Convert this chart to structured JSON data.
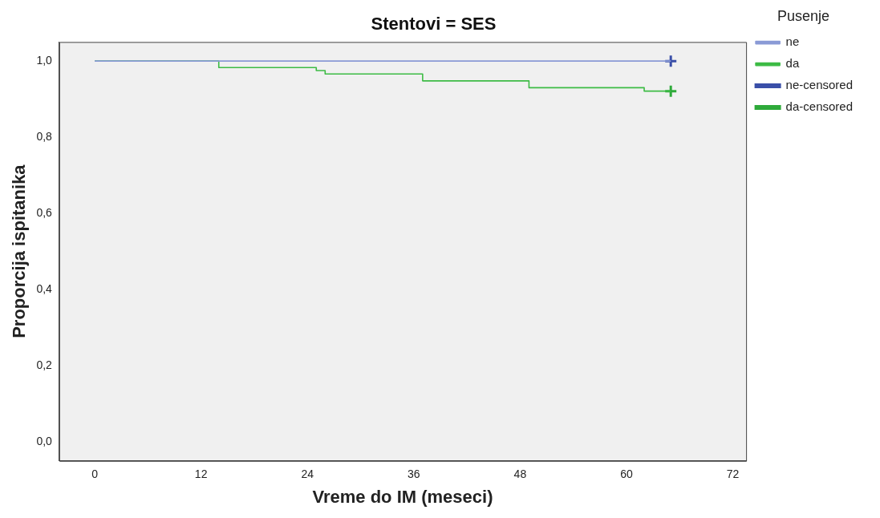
{
  "chart_data": {
    "type": "step",
    "title": "Stentovi = SES",
    "xlabel": "Vreme do IM (meseci)",
    "ylabel": "Proporcija ispitanika",
    "legend_title": "Pusenje",
    "legend": "right",
    "grid": false,
    "xlim": [
      -4,
      73.5
    ],
    "xticks": [
      0,
      12,
      24,
      36,
      48,
      60,
      72
    ],
    "ylim": [
      -0.05,
      1.05
    ],
    "yticks": [
      {
        "value": 0,
        "label": "0,0"
      },
      {
        "value": 0.2,
        "label": "0,2"
      },
      {
        "value": 0.4,
        "label": "0,4"
      },
      {
        "value": 0.6,
        "label": "0,6"
      },
      {
        "value": 0.8,
        "label": "0,8"
      },
      {
        "value": 1,
        "label": "1,0"
      }
    ],
    "series": [
      {
        "name": "ne",
        "color": "#8a9ad6",
        "x": [
          0,
          65
        ],
        "values": [
          1,
          1
        ]
      },
      {
        "name": "da",
        "color": "#3dbb45",
        "x": [
          0,
          14,
          25,
          26,
          37,
          49,
          62,
          65
        ],
        "values": [
          1,
          0.983,
          0.975,
          0.966,
          0.948,
          0.93,
          0.921,
          0.921
        ]
      },
      {
        "name": "ne-censored",
        "type": "scatter",
        "marker": "cross",
        "color": "#3a4fa8",
        "x": [
          65
        ],
        "values": [
          1
        ]
      },
      {
        "name": "da-censored",
        "type": "scatter",
        "marker": "cross",
        "color": "#2eaa3a",
        "x": [
          65
        ],
        "values": [
          0.921
        ]
      }
    ]
  }
}
